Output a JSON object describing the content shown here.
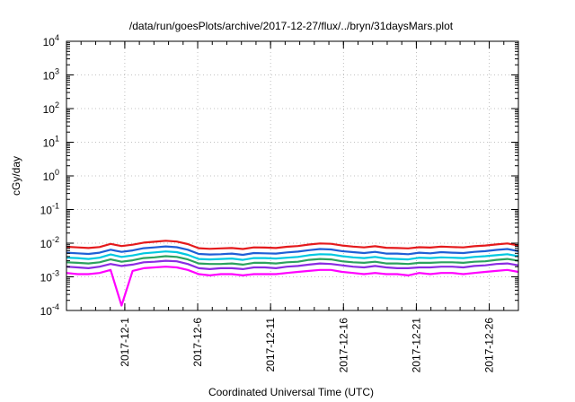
{
  "chart_data": {
    "type": "line",
    "title": "/data/run/goesPlots/archive/2017-12-27/flux/../bryn/31daysMars.plot",
    "xlabel": "Coordinated Universal Time (UTC)",
    "ylabel": "cGy/day",
    "y_scale": "log",
    "ylim": [
      0.0001,
      10000
    ],
    "xlim": [
      "2017-11-27",
      "2017-12-28"
    ],
    "grid": true,
    "y_ticks": [
      {
        "base": "10",
        "exp": "-4"
      },
      {
        "base": "10",
        "exp": "-3"
      },
      {
        "base": "10",
        "exp": "-2"
      },
      {
        "base": "10",
        "exp": "-1"
      },
      {
        "base": "10",
        "exp": "0"
      },
      {
        "base": "10",
        "exp": "1"
      },
      {
        "base": "10",
        "exp": "2"
      },
      {
        "base": "10",
        "exp": "3"
      },
      {
        "base": "10",
        "exp": "4"
      }
    ],
    "x_ticks": [
      "2017-12-1",
      "2017-12-6",
      "2017-12-11",
      "2017-12-16",
      "2017-12-21",
      "2017-12-26"
    ],
    "series": [
      {
        "color": "#e41a1c",
        "values": [
          0.0078,
          0.0075,
          0.0072,
          0.0077,
          0.0095,
          0.0082,
          0.009,
          0.0104,
          0.011,
          0.0118,
          0.0112,
          0.0094,
          0.0071,
          0.0068,
          0.007,
          0.0072,
          0.0067,
          0.0075,
          0.0074,
          0.0072,
          0.0078,
          0.0082,
          0.0091,
          0.0098,
          0.0096,
          0.0085,
          0.0079,
          0.0075,
          0.0081,
          0.0073,
          0.0072,
          0.007,
          0.0076,
          0.0074,
          0.0079,
          0.0077,
          0.0075,
          0.0081,
          0.0085,
          0.0092,
          0.0098,
          0.0086
        ]
      },
      {
        "color": "#1f5fd6",
        "values": [
          0.0052,
          0.005,
          0.0048,
          0.0052,
          0.0064,
          0.0055,
          0.0061,
          0.0071,
          0.0075,
          0.008,
          0.0076,
          0.0064,
          0.0048,
          0.0046,
          0.0047,
          0.0049,
          0.0045,
          0.0051,
          0.005,
          0.0049,
          0.0053,
          0.0056,
          0.0062,
          0.0067,
          0.0065,
          0.0058,
          0.0054,
          0.0051,
          0.0055,
          0.0049,
          0.0049,
          0.0047,
          0.0052,
          0.005,
          0.0054,
          0.0052,
          0.0051,
          0.0055,
          0.0058,
          0.0063,
          0.0067,
          0.0058
        ]
      },
      {
        "color": "#00c8e0",
        "values": [
          0.0037,
          0.0036,
          0.0034,
          0.0037,
          0.0046,
          0.0039,
          0.0043,
          0.005,
          0.0053,
          0.0057,
          0.0054,
          0.0045,
          0.0034,
          0.0033,
          0.0034,
          0.0035,
          0.0032,
          0.0036,
          0.0036,
          0.0035,
          0.0037,
          0.0039,
          0.0044,
          0.0047,
          0.0046,
          0.0041,
          0.0038,
          0.0036,
          0.0039,
          0.0035,
          0.0034,
          0.0033,
          0.0037,
          0.0036,
          0.0038,
          0.0037,
          0.0036,
          0.0039,
          0.0041,
          0.0044,
          0.0047,
          0.0041
        ]
      },
      {
        "color": "#2ca25f",
        "values": [
          0.0027,
          0.0026,
          0.0025,
          0.0027,
          0.0033,
          0.0028,
          0.0031,
          0.0036,
          0.0038,
          0.0041,
          0.0039,
          0.0033,
          0.0025,
          0.0024,
          0.0024,
          0.0025,
          0.0023,
          0.0026,
          0.0026,
          0.0025,
          0.0027,
          0.0028,
          0.0032,
          0.0034,
          0.0033,
          0.0029,
          0.0027,
          0.0026,
          0.0028,
          0.0025,
          0.0025,
          0.0024,
          0.0026,
          0.0026,
          0.0027,
          0.0027,
          0.0026,
          0.0028,
          0.0029,
          0.0032,
          0.0034,
          0.003
        ]
      },
      {
        "color": "#8a2be2",
        "values": [
          0.002,
          0.0019,
          0.0018,
          0.002,
          0.0024,
          0.0021,
          0.0023,
          0.0027,
          0.0028,
          0.003,
          0.0029,
          0.0024,
          0.0018,
          0.0017,
          0.0018,
          0.0018,
          0.0017,
          0.0019,
          0.0019,
          0.0018,
          0.002,
          0.0021,
          0.0023,
          0.0025,
          0.0024,
          0.0022,
          0.002,
          0.0019,
          0.0021,
          0.0019,
          0.0018,
          0.0018,
          0.0019,
          0.0019,
          0.002,
          0.002,
          0.0019,
          0.0021,
          0.0022,
          0.0024,
          0.0025,
          0.0022
        ]
      },
      {
        "color": "#ff00ff",
        "values": [
          0.0013,
          0.0012,
          0.0012,
          0.0013,
          0.0016,
          0.00014,
          0.0015,
          0.0018,
          0.0019,
          0.002,
          0.0019,
          0.0016,
          0.0012,
          0.0011,
          0.0012,
          0.0012,
          0.0011,
          0.0012,
          0.0012,
          0.0012,
          0.0013,
          0.0014,
          0.0015,
          0.0016,
          0.0016,
          0.0014,
          0.0013,
          0.0012,
          0.0013,
          0.0012,
          0.0012,
          0.0011,
          0.0013,
          0.0012,
          0.0013,
          0.0013,
          0.0012,
          0.0013,
          0.0014,
          0.0015,
          0.0016,
          0.0014
        ]
      }
    ]
  }
}
